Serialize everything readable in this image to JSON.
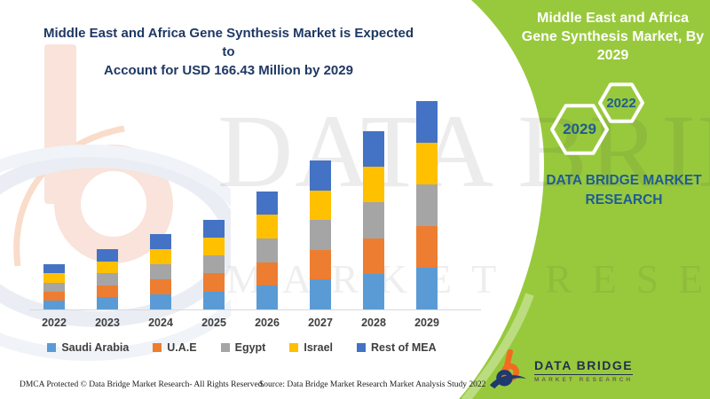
{
  "header": {
    "left_title": [
      "Middle East and Africa Gene Synthesis Market is Expected to",
      "Account for USD 166.43 Million by 2029"
    ]
  },
  "right_panel": {
    "title": "Middle East and Africa Gene Synthesis Market, By 2029",
    "hexagon_front": "2029",
    "hexagon_back": "2022",
    "brand_name": "DATA BRIDGE MARKET RESEARCH"
  },
  "chart_data": {
    "type": "bar",
    "stacked": true,
    "unit": "USD Million",
    "title": "Middle East and Africa Gene Synthesis Market, By 2029",
    "categories": [
      "2022",
      "2023",
      "2024",
      "2025",
      "2026",
      "2027",
      "2028",
      "2029"
    ],
    "series": [
      {
        "name": "Saudi Arabia",
        "color": "#5B9BD5",
        "values": [
          7.2,
          9.6,
          12.0,
          14.4,
          18.9,
          23.8,
          28.5,
          33.29
        ]
      },
      {
        "name": "U.A.E",
        "color": "#ED7D31",
        "values": [
          7.2,
          9.6,
          12.0,
          14.4,
          18.9,
          23.8,
          28.5,
          33.29
        ]
      },
      {
        "name": "Egypt",
        "color": "#A5A5A5",
        "values": [
          7.2,
          9.6,
          12.0,
          14.4,
          18.9,
          23.8,
          28.5,
          33.28
        ]
      },
      {
        "name": "Israel",
        "color": "#FFC000",
        "values": [
          7.2,
          9.6,
          12.0,
          14.4,
          18.9,
          23.8,
          28.5,
          33.28
        ]
      },
      {
        "name": "Rest of MEA",
        "color": "#4472C4",
        "values": [
          7.2,
          9.6,
          12.0,
          14.4,
          18.9,
          23.8,
          28.5,
          33.29
        ]
      }
    ],
    "totals": [
      36.0,
      48.0,
      60.0,
      72.0,
      94.5,
      119.0,
      142.5,
      166.43
    ],
    "highlight": {
      "year": "2029",
      "value_label": "USD 166.43 Million"
    },
    "ylim": [
      0,
      175
    ],
    "grid": false,
    "legend_position": "bottom"
  },
  "watermark": {
    "line1": "DATA BRIDGE",
    "line2": "MARKET RESEARCH"
  },
  "footer": {
    "dmca": "DMCA Protected © Data Bridge Market Research- All Rights Reserved.",
    "source": "Source: Data Bridge Market Research Market Analysis Study 2022",
    "logo_title": "DATA BRIDGE",
    "logo_subtitle": "MARKET RESEARCH"
  },
  "colors": {
    "green": "#98C93C",
    "navy": "#1F3864",
    "steel": "#1F5C94",
    "axis": "#D9D9D9",
    "label": "#3F3F3F",
    "logo_orange": "#F26B21",
    "logo_navy": "#1E3A6E"
  }
}
